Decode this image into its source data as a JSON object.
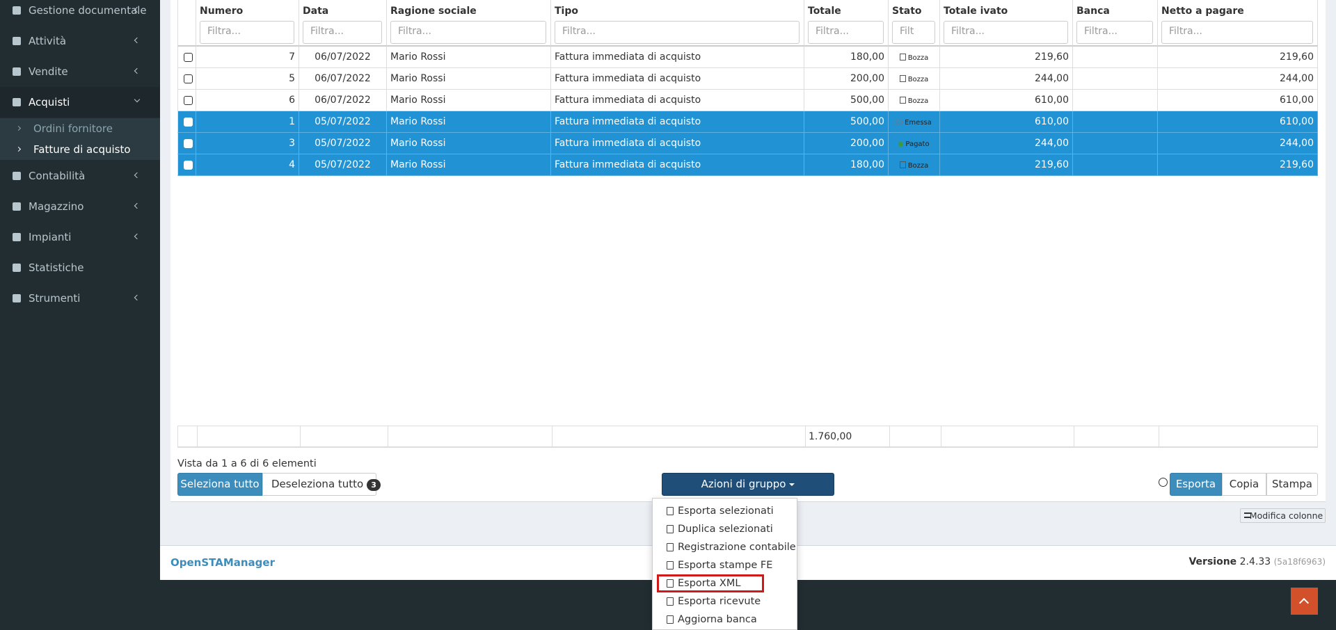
{
  "sidebar": {
    "items": [
      {
        "label": "Gestione documentale"
      },
      {
        "label": "Attività"
      },
      {
        "label": "Vendite"
      },
      {
        "label": "Acquisti",
        "children": [
          "Ordini fornitore",
          "Fatture di acquisto"
        ]
      },
      {
        "label": "Contabilità"
      },
      {
        "label": "Magazzino"
      },
      {
        "label": "Impianti"
      },
      {
        "label": "Statistiche"
      },
      {
        "label": "Strumenti"
      }
    ]
  },
  "table": {
    "headers": [
      {
        "label": "Numero",
        "filter": "Filtra..."
      },
      {
        "label": "Data",
        "filter": "Filtra..."
      },
      {
        "label": "Ragione sociale",
        "filter": "Filtra..."
      },
      {
        "label": "Tipo",
        "filter": "Filtra..."
      },
      {
        "label": "Totale",
        "filter": "Filtra..."
      },
      {
        "label": "Stato",
        "filter": "Filt"
      },
      {
        "label": "Totale ivato",
        "filter": "Filtra..."
      },
      {
        "label": "Banca",
        "filter": "Filtra..."
      },
      {
        "label": "Netto a pagare",
        "filter": "Filtra..."
      }
    ],
    "rows": [
      {
        "selected": false,
        "status_icon": "file",
        "cells": [
          "7",
          "06/07/2022",
          "Mario Rossi",
          "Fattura immediata di acquisto",
          "180,00",
          "Bozza",
          "219,60",
          null,
          "219,60"
        ]
      },
      {
        "selected": false,
        "status_icon": "file",
        "cells": [
          "5",
          "06/07/2022",
          "Mario Rossi",
          "Fattura immediata di acquisto",
          "200,00",
          "Bozza",
          "244,00",
          null,
          "244,00"
        ]
      },
      {
        "selected": false,
        "status_icon": "file",
        "cells": [
          "6",
          "06/07/2022",
          "Mario Rossi",
          "Fattura immediata di acquisto",
          "500,00",
          "Bozza",
          "610,00",
          null,
          "610,00"
        ]
      },
      {
        "selected": true,
        "status_icon": "circle",
        "cells": [
          "1",
          "05/07/2022",
          "Mario Rossi",
          "Fattura immediata di acquisto",
          "500,00",
          "Emessa",
          "610,00",
          null,
          "610,00"
        ]
      },
      {
        "selected": true,
        "status_icon": "dot",
        "cells": [
          "3",
          "05/07/2022",
          "Mario Rossi",
          "Fattura immediata di acquisto",
          "200,00",
          "Pagato",
          "244,00",
          null,
          "244,00"
        ]
      },
      {
        "selected": true,
        "status_icon": "file",
        "cells": [
          "4",
          "05/07/2022",
          "Mario Rossi",
          "Fattura immediata di acquisto",
          "180,00",
          "Bozza",
          "219,60",
          null,
          "219,60"
        ]
      }
    ],
    "total": "1.760,00"
  },
  "info": "Vista da 1 a 6 di 6 elementi",
  "select_all": "Seleziona tutto",
  "deselect_all": "Deseleziona tutto",
  "deselect_count": "3",
  "group_actions": "Azioni di gruppo",
  "export_buttons": [
    "Esporta",
    "Copia",
    "Stampa"
  ],
  "edit_columns": "Modifica colonne",
  "dropdown": {
    "items": [
      "Esporta selezionati",
      "Duplica selezionati",
      "Registrazione contabile",
      "Esporta stampe FE",
      "Esporta XML",
      "Esporta ricevute",
      "Aggiorna banca"
    ],
    "highlighted": 4
  },
  "footer": {
    "brand": "OpenSTAManager",
    "version_label": "Versione",
    "version": "2.4.33",
    "build": "(5a18f6963)"
  }
}
